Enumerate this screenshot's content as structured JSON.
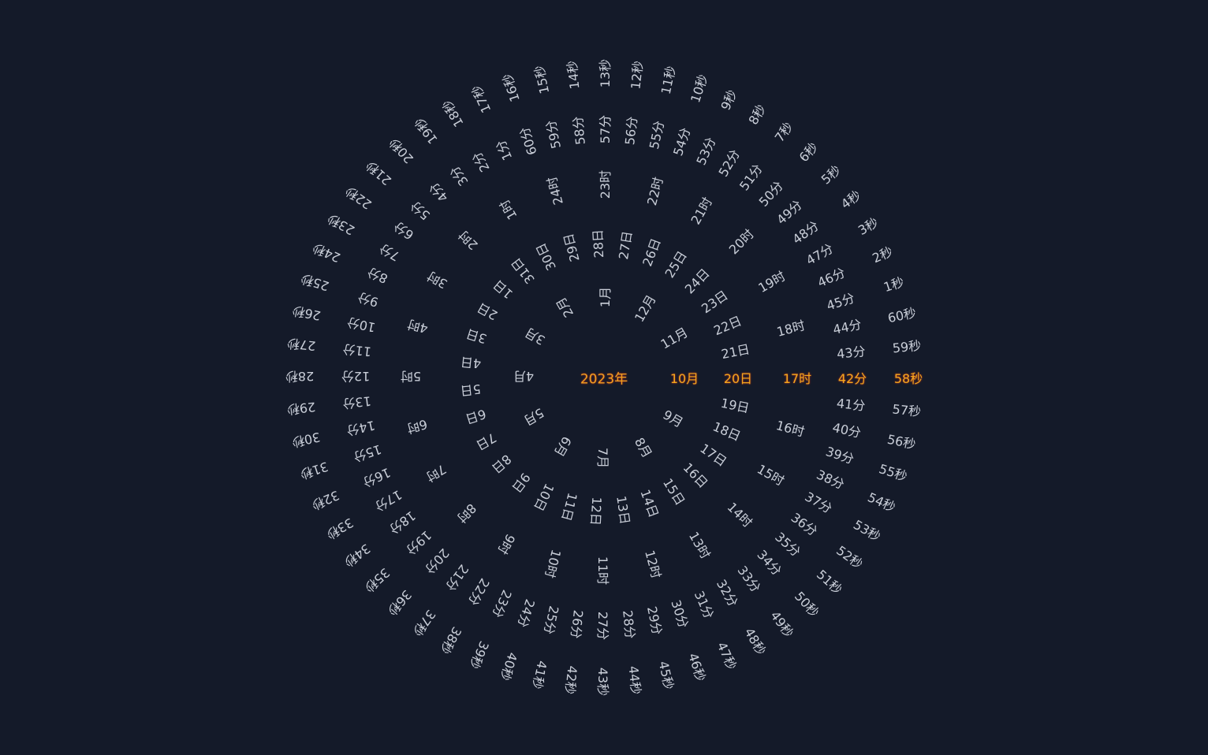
{
  "year": "2023年",
  "colors": {
    "background": "#141a29",
    "text": "#c9ced8",
    "highlight": "#f2a81d"
  },
  "rings": [
    {
      "name": "month",
      "count": 12,
      "suffix": "月",
      "current": 10
    },
    {
      "name": "day",
      "count": 31,
      "suffix": "日",
      "current": 20
    },
    {
      "name": "hour",
      "count": 24,
      "suffix": "时",
      "current": 17
    },
    {
      "name": "minute",
      "count": 60,
      "suffix": "分",
      "current": 42
    },
    {
      "name": "second",
      "count": 60,
      "suffix": "秒",
      "current": 58
    }
  ]
}
